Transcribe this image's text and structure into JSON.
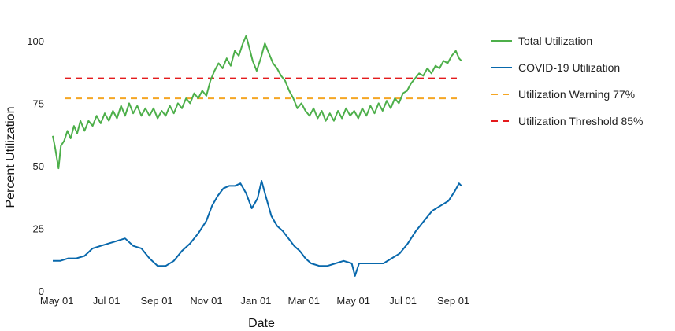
{
  "chart_data": {
    "type": "line",
    "title": "",
    "xlabel": "Date",
    "ylabel": "Percent Utilization",
    "x_range": [
      "2020-04-25",
      "2021-09-15"
    ],
    "ylim": [
      0,
      105
    ],
    "y_ticks": [
      0,
      25,
      50,
      75,
      100
    ],
    "x_ticks": [
      {
        "date": "2020-05-01",
        "label": "May 01"
      },
      {
        "date": "2020-07-01",
        "label": "Jul 01"
      },
      {
        "date": "2020-09-01",
        "label": "Sep 01"
      },
      {
        "date": "2020-11-01",
        "label": "Nov 01"
      },
      {
        "date": "2021-01-01",
        "label": "Jan 01"
      },
      {
        "date": "2021-03-01",
        "label": "Mar 01"
      },
      {
        "date": "2021-05-01",
        "label": "May 01"
      },
      {
        "date": "2021-07-01",
        "label": "Jul 01"
      },
      {
        "date": "2021-09-01",
        "label": "Sep 01"
      }
    ],
    "grid": false,
    "legend_position": "right",
    "series": [
      {
        "name": "Total Utilization",
        "color": "#4daf4a",
        "style": "solid",
        "points": [
          [
            "2020-04-26",
            62
          ],
          [
            "2020-04-29",
            57
          ],
          [
            "2020-05-03",
            49
          ],
          [
            "2020-05-06",
            58
          ],
          [
            "2020-05-10",
            60
          ],
          [
            "2020-05-14",
            64
          ],
          [
            "2020-05-18",
            61
          ],
          [
            "2020-05-22",
            66
          ],
          [
            "2020-05-26",
            63
          ],
          [
            "2020-05-30",
            68
          ],
          [
            "2020-06-04",
            64
          ],
          [
            "2020-06-09",
            68
          ],
          [
            "2020-06-14",
            66
          ],
          [
            "2020-06-19",
            70
          ],
          [
            "2020-06-24",
            67
          ],
          [
            "2020-06-29",
            71
          ],
          [
            "2020-07-04",
            68
          ],
          [
            "2020-07-09",
            72
          ],
          [
            "2020-07-14",
            69
          ],
          [
            "2020-07-19",
            74
          ],
          [
            "2020-07-24",
            70
          ],
          [
            "2020-07-29",
            75
          ],
          [
            "2020-08-03",
            71
          ],
          [
            "2020-08-08",
            74
          ],
          [
            "2020-08-13",
            70
          ],
          [
            "2020-08-18",
            73
          ],
          [
            "2020-08-23",
            70
          ],
          [
            "2020-08-28",
            73
          ],
          [
            "2020-09-02",
            69
          ],
          [
            "2020-09-07",
            72
          ],
          [
            "2020-09-12",
            70
          ],
          [
            "2020-09-17",
            74
          ],
          [
            "2020-09-22",
            71
          ],
          [
            "2020-09-27",
            75
          ],
          [
            "2020-10-02",
            73
          ],
          [
            "2020-10-07",
            77
          ],
          [
            "2020-10-12",
            75
          ],
          [
            "2020-10-17",
            79
          ],
          [
            "2020-10-22",
            77
          ],
          [
            "2020-10-27",
            80
          ],
          [
            "2020-11-01",
            78
          ],
          [
            "2020-11-06",
            84
          ],
          [
            "2020-11-11",
            88
          ],
          [
            "2020-11-16",
            91
          ],
          [
            "2020-11-21",
            89
          ],
          [
            "2020-11-26",
            93
          ],
          [
            "2020-12-01",
            90
          ],
          [
            "2020-12-06",
            96
          ],
          [
            "2020-12-11",
            94
          ],
          [
            "2020-12-16",
            99
          ],
          [
            "2020-12-20",
            102
          ],
          [
            "2020-12-24",
            97
          ],
          [
            "2020-12-28",
            92
          ],
          [
            "2021-01-02",
            88
          ],
          [
            "2021-01-07",
            93
          ],
          [
            "2021-01-12",
            99
          ],
          [
            "2021-01-17",
            95
          ],
          [
            "2021-01-22",
            91
          ],
          [
            "2021-01-27",
            89
          ],
          [
            "2021-02-01",
            86
          ],
          [
            "2021-02-06",
            84
          ],
          [
            "2021-02-11",
            80
          ],
          [
            "2021-02-16",
            77
          ],
          [
            "2021-02-21",
            73
          ],
          [
            "2021-02-26",
            75
          ],
          [
            "2021-03-03",
            72
          ],
          [
            "2021-03-08",
            70
          ],
          [
            "2021-03-13",
            73
          ],
          [
            "2021-03-18",
            69
          ],
          [
            "2021-03-23",
            72
          ],
          [
            "2021-03-28",
            68
          ],
          [
            "2021-04-02",
            71
          ],
          [
            "2021-04-07",
            68
          ],
          [
            "2021-04-12",
            72
          ],
          [
            "2021-04-17",
            69
          ],
          [
            "2021-04-22",
            73
          ],
          [
            "2021-04-27",
            70
          ],
          [
            "2021-05-02",
            72
          ],
          [
            "2021-05-07",
            69
          ],
          [
            "2021-05-12",
            73
          ],
          [
            "2021-05-17",
            70
          ],
          [
            "2021-05-22",
            74
          ],
          [
            "2021-05-27",
            71
          ],
          [
            "2021-06-01",
            75
          ],
          [
            "2021-06-06",
            72
          ],
          [
            "2021-06-11",
            76
          ],
          [
            "2021-06-16",
            73
          ],
          [
            "2021-06-21",
            77
          ],
          [
            "2021-06-26",
            75
          ],
          [
            "2021-07-01",
            79
          ],
          [
            "2021-07-06",
            80
          ],
          [
            "2021-07-11",
            83
          ],
          [
            "2021-07-16",
            85
          ],
          [
            "2021-07-21",
            87
          ],
          [
            "2021-07-26",
            86
          ],
          [
            "2021-07-31",
            89
          ],
          [
            "2021-08-05",
            87
          ],
          [
            "2021-08-10",
            90
          ],
          [
            "2021-08-15",
            89
          ],
          [
            "2021-08-20",
            92
          ],
          [
            "2021-08-25",
            91
          ],
          [
            "2021-08-30",
            94
          ],
          [
            "2021-09-04",
            96
          ],
          [
            "2021-09-08",
            93
          ],
          [
            "2021-09-11",
            92
          ]
        ]
      },
      {
        "name": "COVID-19 Utilization",
        "color": "#0868ac",
        "style": "solid",
        "points": [
          [
            "2020-04-26",
            12
          ],
          [
            "2020-05-05",
            12
          ],
          [
            "2020-05-15",
            13
          ],
          [
            "2020-05-25",
            13
          ],
          [
            "2020-06-04",
            14
          ],
          [
            "2020-06-14",
            17
          ],
          [
            "2020-06-24",
            18
          ],
          [
            "2020-07-04",
            19
          ],
          [
            "2020-07-14",
            20
          ],
          [
            "2020-07-24",
            21
          ],
          [
            "2020-08-03",
            18
          ],
          [
            "2020-08-13",
            17
          ],
          [
            "2020-08-23",
            13
          ],
          [
            "2020-09-02",
            10
          ],
          [
            "2020-09-12",
            10
          ],
          [
            "2020-09-22",
            12
          ],
          [
            "2020-10-02",
            16
          ],
          [
            "2020-10-12",
            19
          ],
          [
            "2020-10-22",
            23
          ],
          [
            "2020-11-01",
            28
          ],
          [
            "2020-11-08",
            34
          ],
          [
            "2020-11-15",
            38
          ],
          [
            "2020-11-22",
            41
          ],
          [
            "2020-11-29",
            42
          ],
          [
            "2020-12-06",
            42
          ],
          [
            "2020-12-13",
            43
          ],
          [
            "2020-12-20",
            39
          ],
          [
            "2020-12-27",
            33
          ],
          [
            "2021-01-03",
            37
          ],
          [
            "2021-01-08",
            44
          ],
          [
            "2021-01-13",
            38
          ],
          [
            "2021-01-20",
            30
          ],
          [
            "2021-01-27",
            26
          ],
          [
            "2021-02-03",
            24
          ],
          [
            "2021-02-10",
            21
          ],
          [
            "2021-02-17",
            18
          ],
          [
            "2021-02-24",
            16
          ],
          [
            "2021-03-03",
            13
          ],
          [
            "2021-03-10",
            11
          ],
          [
            "2021-03-20",
            10
          ],
          [
            "2021-03-30",
            10
          ],
          [
            "2021-04-09",
            11
          ],
          [
            "2021-04-19",
            12
          ],
          [
            "2021-04-29",
            11
          ],
          [
            "2021-05-03",
            6
          ],
          [
            "2021-05-08",
            11
          ],
          [
            "2021-05-18",
            11
          ],
          [
            "2021-05-28",
            11
          ],
          [
            "2021-06-07",
            11
          ],
          [
            "2021-06-17",
            13
          ],
          [
            "2021-06-27",
            15
          ],
          [
            "2021-07-07",
            19
          ],
          [
            "2021-07-17",
            24
          ],
          [
            "2021-07-27",
            28
          ],
          [
            "2021-08-06",
            32
          ],
          [
            "2021-08-16",
            34
          ],
          [
            "2021-08-26",
            36
          ],
          [
            "2021-09-03",
            40
          ],
          [
            "2021-09-08",
            43
          ],
          [
            "2021-09-11",
            42
          ]
        ]
      }
    ],
    "reference_lines": [
      {
        "name": "Utilization Warning 77%",
        "value": 77,
        "color": "#f5a623",
        "style": "dashed"
      },
      {
        "name": "Utilization Threshold 85%",
        "value": 85,
        "color": "#e41a1c",
        "style": "dashed"
      }
    ]
  }
}
